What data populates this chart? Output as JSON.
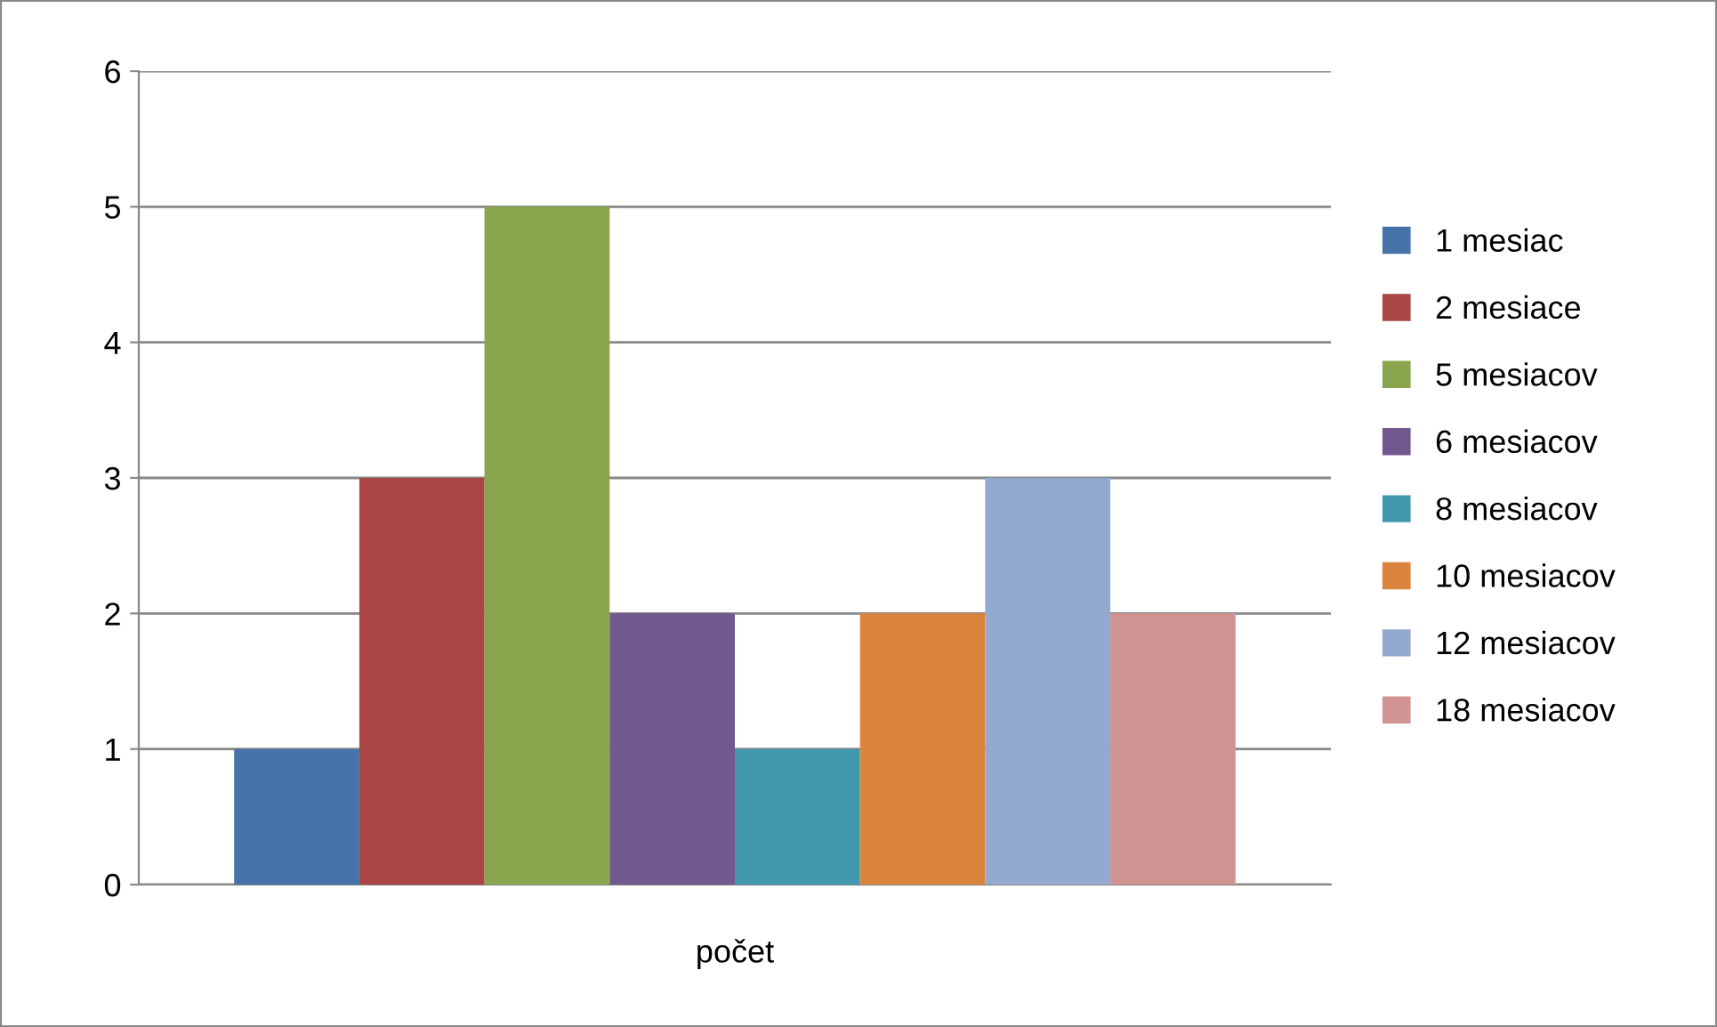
{
  "chart_data": {
    "type": "bar",
    "categories": [
      "počet"
    ],
    "series": [
      {
        "name": "1 mesiac",
        "color": "#4572a7",
        "values": [
          1
        ]
      },
      {
        "name": "2 mesiace",
        "color": "#aa4643",
        "values": [
          3
        ]
      },
      {
        "name": "5 mesiacov",
        "color": "#89a54e",
        "values": [
          5
        ]
      },
      {
        "name": "6 mesiacov",
        "color": "#71588f",
        "values": [
          2
        ]
      },
      {
        "name": "8 mesiacov",
        "color": "#4198af",
        "values": [
          1
        ]
      },
      {
        "name": "10 mesiacov",
        "color": "#db843d",
        "values": [
          2
        ]
      },
      {
        "name": "12 mesiacov",
        "color": "#93a9cf",
        "values": [
          3
        ]
      },
      {
        "name": "18 mesiacov",
        "color": "#d19392",
        "values": [
          2
        ]
      }
    ],
    "ylim": [
      0,
      6
    ],
    "yticks": [
      0,
      1,
      2,
      3,
      4,
      5,
      6
    ],
    "grid": "y",
    "legend": "right"
  }
}
